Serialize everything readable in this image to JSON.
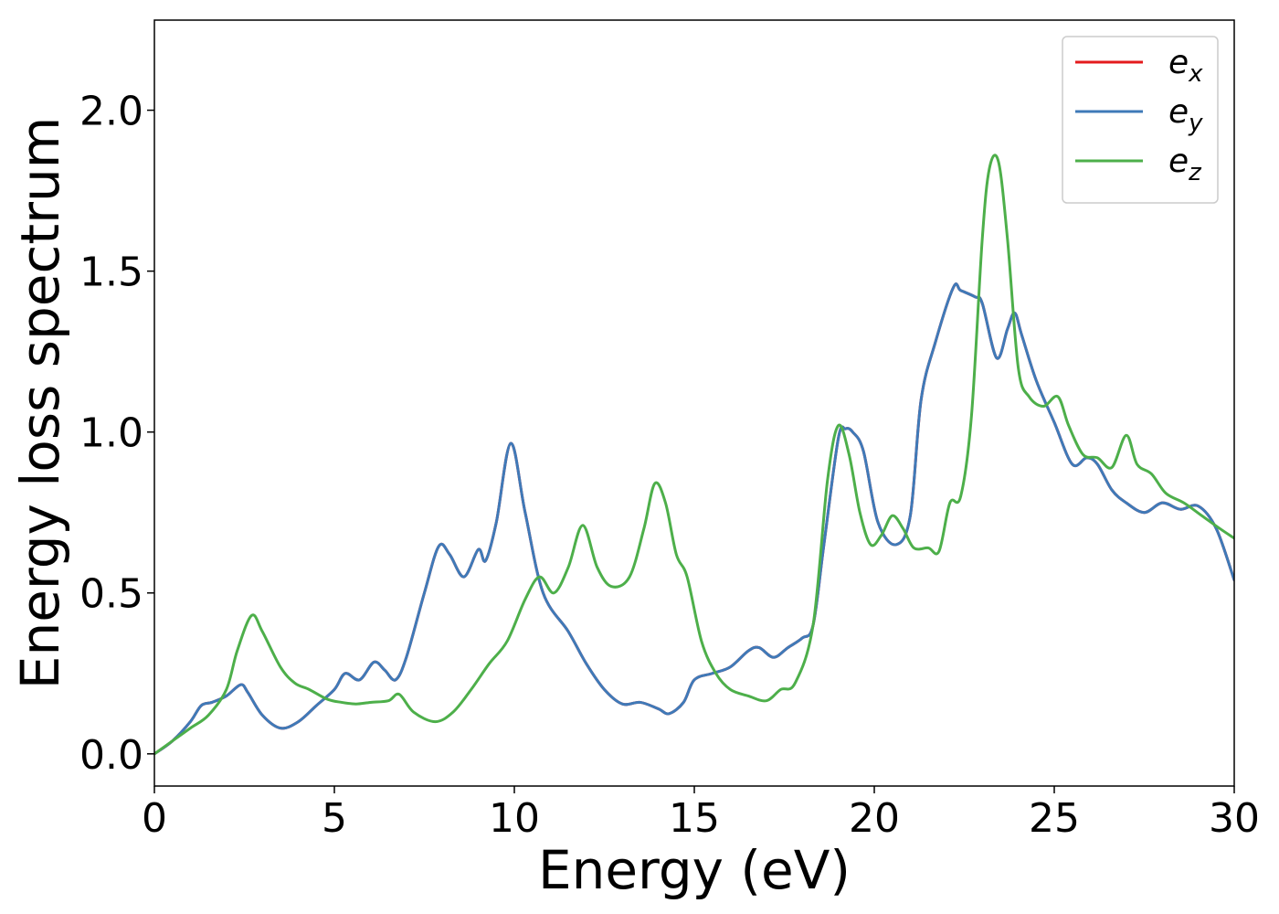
{
  "chart_data": {
    "type": "line",
    "xlabel": "Energy (eV)",
    "ylabel": "Energy loss spectrum",
    "xlim": [
      0,
      30
    ],
    "ylim": [
      -0.1,
      2.28
    ],
    "xticks": [
      0,
      5,
      10,
      15,
      20,
      25,
      30
    ],
    "xtick_labels": [
      "0",
      "5",
      "10",
      "15",
      "20",
      "25",
      "30"
    ],
    "yticks": [
      0.0,
      0.5,
      1.0,
      1.5,
      2.0
    ],
    "ytick_labels": [
      "0.0",
      "0.5",
      "1.0",
      "1.5",
      "2.0"
    ],
    "grid": false,
    "legend_position": "top-right",
    "series": [
      {
        "name": "e",
        "sub": "x",
        "color": "#e41a1c",
        "x": [
          0,
          0.5,
          1.0,
          1.3,
          1.6,
          2.0,
          2.4,
          2.6,
          3.0,
          3.5,
          4.0,
          4.5,
          5.0,
          5.3,
          5.7,
          6.1,
          6.4,
          6.7,
          7.0,
          7.5,
          7.9,
          8.2,
          8.6,
          9.0,
          9.2,
          9.5,
          9.9,
          10.3,
          10.8,
          11.5,
          12.0,
          12.5,
          13.0,
          13.5,
          14.0,
          14.3,
          14.7,
          15.0,
          15.5,
          16.0,
          16.5,
          16.8,
          17.2,
          17.6,
          18.0,
          18.3,
          18.6,
          19.0,
          19.2,
          19.4,
          19.7,
          20.1,
          20.6,
          21.0,
          21.3,
          21.7,
          22.2,
          22.4,
          22.8,
          23.0,
          23.4,
          23.7,
          23.9,
          24.1,
          24.5,
          25.0,
          25.5,
          25.9,
          26.2,
          26.6,
          27.0,
          27.5,
          28.0,
          28.5,
          29.0,
          29.5,
          30.0
        ],
        "y": [
          0.0,
          0.04,
          0.1,
          0.15,
          0.16,
          0.18,
          0.215,
          0.19,
          0.12,
          0.08,
          0.1,
          0.15,
          0.2,
          0.25,
          0.23,
          0.285,
          0.26,
          0.23,
          0.3,
          0.5,
          0.645,
          0.62,
          0.55,
          0.635,
          0.6,
          0.72,
          0.965,
          0.75,
          0.5,
          0.38,
          0.28,
          0.2,
          0.155,
          0.16,
          0.14,
          0.125,
          0.16,
          0.23,
          0.25,
          0.27,
          0.32,
          0.33,
          0.3,
          0.33,
          0.36,
          0.4,
          0.65,
          0.98,
          1.01,
          1.0,
          0.94,
          0.72,
          0.65,
          0.74,
          1.1,
          1.28,
          1.45,
          1.44,
          1.42,
          1.4,
          1.23,
          1.32,
          1.37,
          1.3,
          1.16,
          1.03,
          0.9,
          0.92,
          0.9,
          0.82,
          0.78,
          0.75,
          0.78,
          0.76,
          0.77,
          0.7,
          0.54
        ]
      },
      {
        "name": "e",
        "sub": "y",
        "color": "#3f7ab8",
        "x": [
          0,
          0.5,
          1.0,
          1.3,
          1.6,
          2.0,
          2.4,
          2.6,
          3.0,
          3.5,
          4.0,
          4.5,
          5.0,
          5.3,
          5.7,
          6.1,
          6.4,
          6.7,
          7.0,
          7.5,
          7.9,
          8.2,
          8.6,
          9.0,
          9.2,
          9.5,
          9.9,
          10.3,
          10.8,
          11.5,
          12.0,
          12.5,
          13.0,
          13.5,
          14.0,
          14.3,
          14.7,
          15.0,
          15.5,
          16.0,
          16.5,
          16.8,
          17.2,
          17.6,
          18.0,
          18.3,
          18.6,
          19.0,
          19.2,
          19.4,
          19.7,
          20.1,
          20.6,
          21.0,
          21.3,
          21.7,
          22.2,
          22.4,
          22.8,
          23.0,
          23.4,
          23.7,
          23.9,
          24.1,
          24.5,
          25.0,
          25.5,
          25.9,
          26.2,
          26.6,
          27.0,
          27.5,
          28.0,
          28.5,
          29.0,
          29.5,
          30.0
        ],
        "y": [
          0.0,
          0.04,
          0.1,
          0.15,
          0.16,
          0.18,
          0.215,
          0.19,
          0.12,
          0.08,
          0.1,
          0.15,
          0.2,
          0.25,
          0.23,
          0.285,
          0.26,
          0.23,
          0.3,
          0.5,
          0.645,
          0.62,
          0.55,
          0.635,
          0.6,
          0.72,
          0.965,
          0.75,
          0.5,
          0.38,
          0.28,
          0.2,
          0.155,
          0.16,
          0.14,
          0.125,
          0.16,
          0.23,
          0.25,
          0.27,
          0.32,
          0.33,
          0.3,
          0.33,
          0.36,
          0.4,
          0.65,
          0.98,
          1.01,
          1.0,
          0.94,
          0.72,
          0.65,
          0.74,
          1.1,
          1.28,
          1.45,
          1.44,
          1.42,
          1.4,
          1.23,
          1.32,
          1.37,
          1.3,
          1.16,
          1.03,
          0.9,
          0.92,
          0.9,
          0.82,
          0.78,
          0.75,
          0.78,
          0.76,
          0.77,
          0.7,
          0.54
        ]
      },
      {
        "name": "e",
        "sub": "z",
        "color": "#4daf4a",
        "x": [
          0,
          0.5,
          1.0,
          1.5,
          2.0,
          2.3,
          2.7,
          3.0,
          3.5,
          3.9,
          4.3,
          4.8,
          5.2,
          5.6,
          6.0,
          6.5,
          6.8,
          7.2,
          7.8,
          8.3,
          8.8,
          9.3,
          9.8,
          10.3,
          10.7,
          11.1,
          11.5,
          11.9,
          12.3,
          12.7,
          13.2,
          13.6,
          13.9,
          14.2,
          14.5,
          14.8,
          15.2,
          15.6,
          16.0,
          16.5,
          17.0,
          17.4,
          17.8,
          18.3,
          18.7,
          19.0,
          19.3,
          19.6,
          19.9,
          20.2,
          20.5,
          20.8,
          21.1,
          21.5,
          21.8,
          22.1,
          22.4,
          22.7,
          23.0,
          23.2,
          23.45,
          23.7,
          24.0,
          24.3,
          24.7,
          25.1,
          25.4,
          25.8,
          26.2,
          26.6,
          27.0,
          27.3,
          27.7,
          28.1,
          28.6,
          29.1,
          29.6,
          30.0
        ],
        "y": [
          0.0,
          0.04,
          0.08,
          0.12,
          0.2,
          0.32,
          0.43,
          0.38,
          0.27,
          0.22,
          0.2,
          0.17,
          0.16,
          0.155,
          0.16,
          0.165,
          0.185,
          0.13,
          0.1,
          0.13,
          0.2,
          0.28,
          0.35,
          0.48,
          0.55,
          0.5,
          0.58,
          0.71,
          0.58,
          0.52,
          0.55,
          0.7,
          0.84,
          0.78,
          0.62,
          0.55,
          0.35,
          0.25,
          0.2,
          0.18,
          0.165,
          0.2,
          0.22,
          0.4,
          0.85,
          1.02,
          0.93,
          0.75,
          0.65,
          0.68,
          0.74,
          0.7,
          0.64,
          0.64,
          0.63,
          0.78,
          0.8,
          1.05,
          1.6,
          1.82,
          1.84,
          1.6,
          1.2,
          1.11,
          1.08,
          1.11,
          1.02,
          0.93,
          0.92,
          0.89,
          0.99,
          0.9,
          0.87,
          0.81,
          0.78,
          0.74,
          0.7,
          0.67
        ]
      }
    ]
  }
}
